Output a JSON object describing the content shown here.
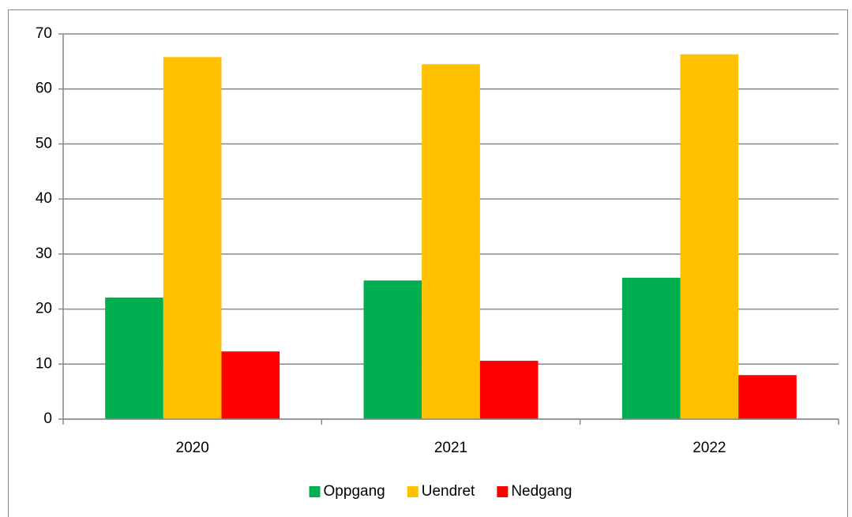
{
  "chart_data": {
    "type": "bar",
    "categories": [
      "2020",
      "2021",
      "2022"
    ],
    "series": [
      {
        "name": "Oppgang",
        "color": "#00b050",
        "values": [
          22.1,
          25.2,
          25.7
        ]
      },
      {
        "name": "Uendret",
        "color": "#ffc000",
        "values": [
          65.8,
          64.5,
          66.3
        ]
      },
      {
        "name": "Nedgang",
        "color": "#ff0000",
        "values": [
          12.3,
          10.6,
          8.0
        ]
      }
    ],
    "ylim": [
      0,
      70
    ],
    "yticks": [
      0,
      10,
      20,
      30,
      40,
      50,
      60,
      70
    ],
    "grid": true,
    "legend": "bottom"
  }
}
